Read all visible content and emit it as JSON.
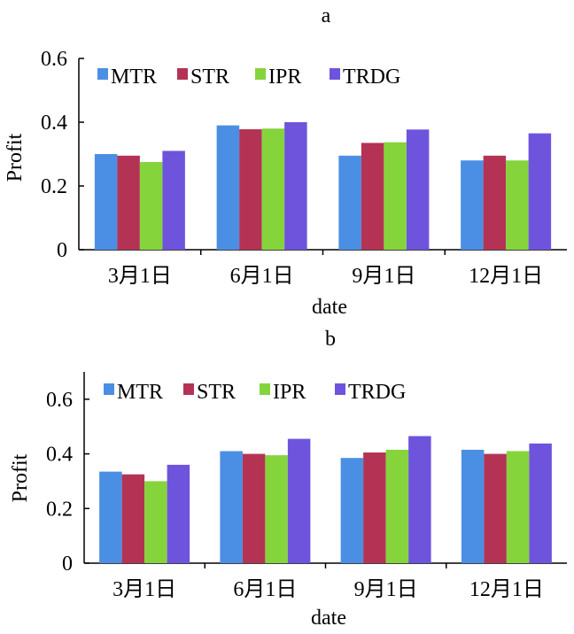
{
  "chart_data": [
    {
      "type": "bar",
      "title": "a",
      "xlabel": "date",
      "ylabel": "Profit",
      "ylim": [
        0,
        0.6
      ],
      "yticks": [
        "0",
        "0.2",
        "0.4",
        "0.6"
      ],
      "categories": [
        "3月1日",
        "6月1日",
        "9月1日",
        "12月1日"
      ],
      "legend_position": "top",
      "series": [
        {
          "name": "MTR",
          "color": "#4a8fe4",
          "values": [
            0.3,
            0.39,
            0.295,
            0.28
          ]
        },
        {
          "name": "STR",
          "color": "#b43355",
          "values": [
            0.295,
            0.378,
            0.335,
            0.295
          ]
        },
        {
          "name": "IPR",
          "color": "#85d43c",
          "values": [
            0.275,
            0.38,
            0.337,
            0.28
          ]
        },
        {
          "name": "TRDG",
          "color": "#6e54dc",
          "values": [
            0.31,
            0.4,
            0.377,
            0.365
          ]
        }
      ]
    },
    {
      "type": "bar",
      "title": "b",
      "xlabel": "date",
      "ylabel": "Profit",
      "ylim": [
        0,
        0.7
      ],
      "yticks": [
        "0",
        "0.2",
        "0.4",
        "0.6"
      ],
      "categories": [
        "3月1日",
        "6月1日",
        "9月1日",
        "12月1日"
      ],
      "legend_position": "top",
      "series": [
        {
          "name": "MTR",
          "color": "#4a8fe4",
          "values": [
            0.335,
            0.41,
            0.385,
            0.415
          ]
        },
        {
          "name": "STR",
          "color": "#b43355",
          "values": [
            0.325,
            0.4,
            0.405,
            0.4
          ]
        },
        {
          "name": "IPR",
          "color": "#85d43c",
          "values": [
            0.3,
            0.395,
            0.415,
            0.41
          ]
        },
        {
          "name": "TRDG",
          "color": "#6e54dc",
          "values": [
            0.36,
            0.455,
            0.465,
            0.438
          ]
        }
      ]
    }
  ]
}
